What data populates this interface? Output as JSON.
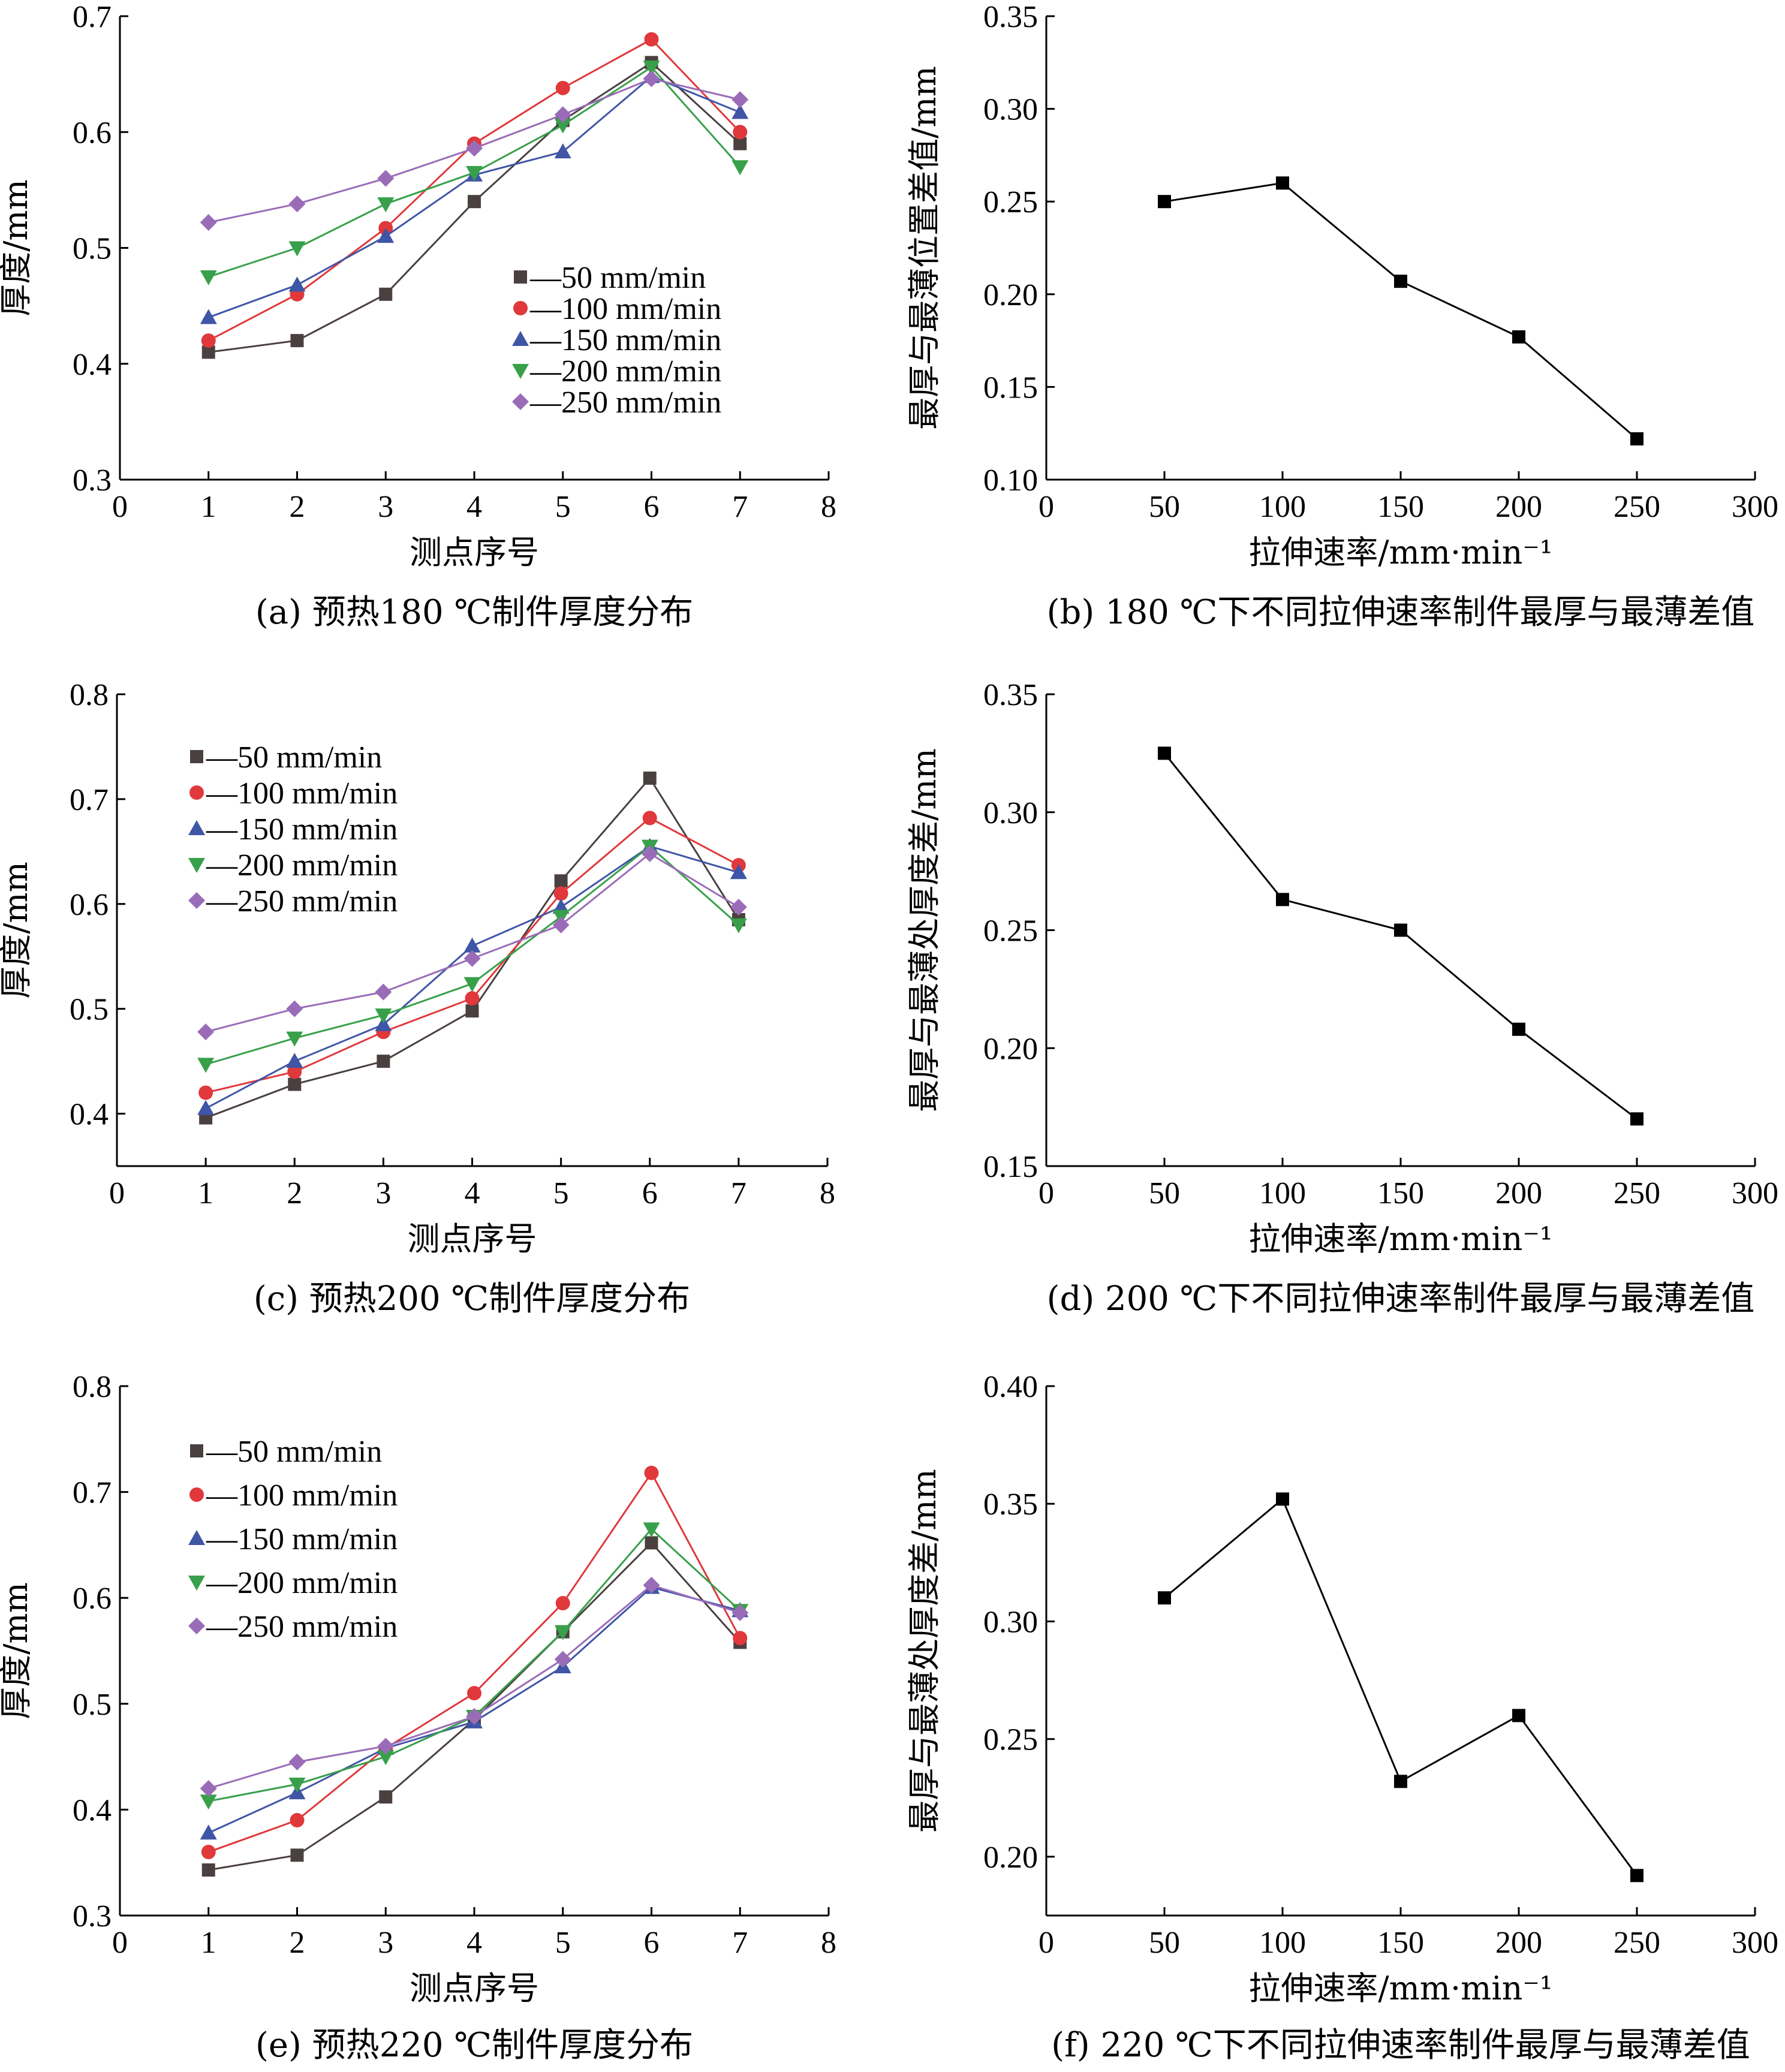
{
  "chart_data": [
    {
      "id": "a",
      "type": "line",
      "caption": "(a) 预热180 ℃制件厚度分布",
      "title": "",
      "xlabel": "测点序号",
      "ylabel": "厚度/mm",
      "xlim": [
        0,
        8
      ],
      "ylim": [
        0.3,
        0.7
      ],
      "xticks": [
        0,
        1,
        2,
        3,
        4,
        5,
        6,
        7,
        8
      ],
      "xtick_labels": [
        "0",
        "1",
        "2",
        "3",
        "4",
        "5",
        "6",
        "7",
        "8"
      ],
      "yticks": [
        0.3,
        0.4,
        0.5,
        0.6,
        0.7
      ],
      "ytick_labels": [
        "0.3",
        "0.4",
        "0.5",
        "0.6",
        "0.7"
      ],
      "legend_position": "center-right",
      "x": [
        1,
        2,
        3,
        4,
        5,
        6,
        7
      ],
      "series": [
        {
          "name": "—50 mm/min",
          "marker": "square",
          "color": "#4a4040",
          "values": [
            0.41,
            0.42,
            0.46,
            0.54,
            0.61,
            0.66,
            0.59
          ]
        },
        {
          "name": "—100 mm/min",
          "marker": "circle",
          "color": "#e0383b",
          "values": [
            0.42,
            0.46,
            0.517,
            0.59,
            0.638,
            0.68,
            0.6
          ]
        },
        {
          "name": "—150 mm/min",
          "marker": "triangle-up",
          "color": "#3f55a6",
          "values": [
            0.44,
            0.468,
            0.51,
            0.563,
            0.583,
            0.648,
            0.617
          ]
        },
        {
          "name": "—200 mm/min",
          "marker": "triangle-down",
          "color": "#38a04a",
          "values": [
            0.475,
            0.5,
            0.538,
            0.565,
            0.606,
            0.656,
            0.57
          ]
        },
        {
          "name": "—250 mm/min",
          "marker": "diamond",
          "color": "#9a6cb8",
          "values": [
            0.522,
            0.538,
            0.56,
            0.586,
            0.615,
            0.646,
            0.628
          ]
        }
      ]
    },
    {
      "id": "b",
      "type": "line",
      "caption": "(b) 180 ℃下不同拉伸速率制件最厚与最薄差值",
      "title": "",
      "xlabel": "拉伸速率/mm·min⁻¹",
      "ylabel": "最厚与最薄位置差值/mm",
      "xlim": [
        0,
        300
      ],
      "ylim": [
        0.1,
        0.35
      ],
      "xticks": [
        0,
        50,
        100,
        150,
        200,
        250,
        300
      ],
      "xtick_labels": [
        "0",
        "50",
        "100",
        "150",
        "200",
        "250",
        "300"
      ],
      "yticks": [
        0.1,
        0.15,
        0.2,
        0.25,
        0.3,
        0.35
      ],
      "ytick_labels": [
        "0.10",
        "0.15",
        "0.20",
        "0.25",
        "0.30",
        "0.35"
      ],
      "x": [
        50,
        100,
        150,
        200,
        250
      ],
      "series": [
        {
          "name": "",
          "marker": "square",
          "color": "#000000",
          "values": [
            0.25,
            0.26,
            0.207,
            0.177,
            0.122
          ]
        }
      ]
    },
    {
      "id": "c",
      "type": "line",
      "caption": "(c) 预热200 ℃制件厚度分布",
      "title": "",
      "xlabel": "测点序号",
      "ylabel": "厚度/mm",
      "xlim": [
        0,
        8
      ],
      "ylim": [
        0.35,
        0.8
      ],
      "xticks": [
        0,
        1,
        2,
        3,
        4,
        5,
        6,
        7,
        8
      ],
      "xtick_labels": [
        "0",
        "1",
        "2",
        "3",
        "4",
        "5",
        "6",
        "7",
        "8"
      ],
      "yticks": [
        0.4,
        0.5,
        0.6,
        0.7,
        0.8
      ],
      "ytick_labels": [
        "0.4",
        "0.5",
        "0.6",
        "0.7",
        "0.8"
      ],
      "legend_position": "top-left",
      "x": [
        1,
        2,
        3,
        4,
        5,
        6,
        7
      ],
      "series": [
        {
          "name": "—50 mm/min",
          "marker": "square",
          "color": "#4a4040",
          "values": [
            0.396,
            0.428,
            0.45,
            0.498,
            0.622,
            0.72,
            0.585
          ]
        },
        {
          "name": "—100 mm/min",
          "marker": "circle",
          "color": "#e0383b",
          "values": [
            0.42,
            0.44,
            0.478,
            0.51,
            0.61,
            0.682,
            0.637
          ]
        },
        {
          "name": "—150 mm/min",
          "marker": "triangle-up",
          "color": "#3f55a6",
          "values": [
            0.405,
            0.45,
            0.485,
            0.56,
            0.597,
            0.655,
            0.63
          ]
        },
        {
          "name": "—200 mm/min",
          "marker": "triangle-down",
          "color": "#38a04a",
          "values": [
            0.447,
            0.472,
            0.494,
            0.524,
            0.588,
            0.655,
            0.58
          ]
        },
        {
          "name": "—250 mm/min",
          "marker": "diamond",
          "color": "#9a6cb8",
          "values": [
            0.478,
            0.5,
            0.516,
            0.548,
            0.58,
            0.648,
            0.597
          ]
        }
      ]
    },
    {
      "id": "d",
      "type": "line",
      "caption": "(d) 200 ℃下不同拉伸速率制件最厚与最薄差值",
      "title": "",
      "xlabel": "拉伸速率/mm·min⁻¹",
      "ylabel": "最厚与最薄处厚度差/mm",
      "xlim": [
        0,
        300
      ],
      "ylim": [
        0.15,
        0.35
      ],
      "xticks": [
        0,
        50,
        100,
        150,
        200,
        250,
        300
      ],
      "xtick_labels": [
        "0",
        "50",
        "100",
        "150",
        "200",
        "250",
        "300"
      ],
      "yticks": [
        0.15,
        0.2,
        0.25,
        0.3,
        0.35
      ],
      "ytick_labels": [
        "0.15",
        "0.20",
        "0.25",
        "0.30",
        "0.35"
      ],
      "x": [
        50,
        100,
        150,
        200,
        250
      ],
      "series": [
        {
          "name": "",
          "marker": "square",
          "color": "#000000",
          "values": [
            0.325,
            0.263,
            0.25,
            0.208,
            0.17
          ]
        }
      ]
    },
    {
      "id": "e",
      "type": "line",
      "caption": "(e) 预热220 ℃制件厚度分布",
      "title": "",
      "xlabel": "测点序号",
      "ylabel": "厚度/mm",
      "xlim": [
        0,
        8
      ],
      "ylim": [
        0.3,
        0.8
      ],
      "xticks": [
        0,
        1,
        2,
        3,
        4,
        5,
        6,
        7,
        8
      ],
      "xtick_labels": [
        "0",
        "1",
        "2",
        "3",
        "4",
        "5",
        "6",
        "7",
        "8"
      ],
      "yticks": [
        0.3,
        0.4,
        0.5,
        0.6,
        0.7,
        0.8
      ],
      "ytick_labels": [
        "0.3",
        "0.4",
        "0.5",
        "0.6",
        "0.7",
        "0.8"
      ],
      "legend_position": "top-left",
      "x": [
        1,
        2,
        3,
        4,
        5,
        6,
        7
      ],
      "series": [
        {
          "name": "—50 mm/min",
          "marker": "square",
          "color": "#4a4040",
          "values": [
            0.343,
            0.357,
            0.412,
            0.485,
            0.568,
            0.652,
            0.558
          ]
        },
        {
          "name": "—100 mm/min",
          "marker": "circle",
          "color": "#e0383b",
          "values": [
            0.36,
            0.39,
            0.458,
            0.51,
            0.595,
            0.718,
            0.562
          ]
        },
        {
          "name": "—150 mm/min",
          "marker": "triangle-up",
          "color": "#3f55a6",
          "values": [
            0.378,
            0.416,
            0.458,
            0.483,
            0.535,
            0.61,
            0.588
          ]
        },
        {
          "name": "—200 mm/min",
          "marker": "triangle-down",
          "color": "#38a04a",
          "values": [
            0.408,
            0.424,
            0.45,
            0.488,
            0.568,
            0.665,
            0.588
          ]
        },
        {
          "name": "—250 mm/min",
          "marker": "diamond",
          "color": "#9a6cb8",
          "values": [
            0.42,
            0.445,
            0.46,
            0.488,
            0.542,
            0.612,
            0.586
          ]
        }
      ]
    },
    {
      "id": "f",
      "type": "line",
      "caption": "(f) 220 ℃下不同拉伸速率制件最厚与最薄差值",
      "title": "",
      "xlabel": "拉伸速率/mm·min⁻¹",
      "ylabel": "最厚与最薄处厚度差/mm",
      "xlim": [
        0,
        300
      ],
      "ylim": [
        0.175,
        0.4
      ],
      "xticks": [
        0,
        50,
        100,
        150,
        200,
        250,
        300
      ],
      "xtick_labels": [
        "0",
        "50",
        "100",
        "150",
        "200",
        "250",
        "300"
      ],
      "yticks": [
        0.2,
        0.25,
        0.3,
        0.35,
        0.4
      ],
      "ytick_labels": [
        "0.20",
        "0.25",
        "0.30",
        "0.35",
        "0.40"
      ],
      "x": [
        50,
        100,
        150,
        200,
        250
      ],
      "series": [
        {
          "name": "",
          "marker": "square",
          "color": "#000000",
          "values": [
            0.31,
            0.352,
            0.232,
            0.26,
            0.192
          ]
        }
      ]
    }
  ]
}
